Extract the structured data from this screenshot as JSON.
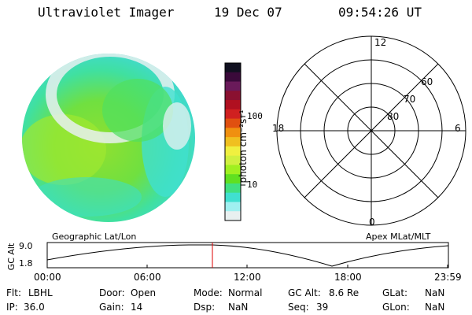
{
  "header": {
    "instrument": "Ultraviolet Imager",
    "date": "19 Dec 07",
    "time": "09:54:26 UT"
  },
  "colorbar": {
    "label": "photon cm⁻²s⁻¹",
    "ticks": [
      "100",
      "10"
    ],
    "colors": [
      "#101020",
      "#3a0a3a",
      "#6a1a5a",
      "#8a1030",
      "#b01020",
      "#d02020",
      "#e05010",
      "#f09010",
      "#f0c020",
      "#f0f040",
      "#d0f040",
      "#a0f020",
      "#60e020",
      "#40e080",
      "#40e0d0",
      "#a0f0f0",
      "#e8f0f0"
    ]
  },
  "polar": {
    "mlt_labels": {
      "top": "12",
      "bottom": "0",
      "left": "18",
      "right": "6"
    },
    "lat_labels": [
      "60",
      "70",
      "80"
    ]
  },
  "panel_labels": {
    "left": "Geographic Lat/Lon",
    "right": "Apex MLat/MLT"
  },
  "altitude_plot": {
    "ylabel": "GC Alt",
    "yticks": [
      "9.0",
      "1.8"
    ],
    "xticks": [
      "00:00",
      "06:00",
      "12:00",
      "18:00",
      "23:59"
    ],
    "marker_color": "#dd0000"
  },
  "status": {
    "row1": [
      {
        "label": "Flt:",
        "value": "LBHL"
      },
      {
        "label": "Door:",
        "value": "Open"
      },
      {
        "label": "Mode:",
        "value": "Normal"
      },
      {
        "label": "GC Alt:",
        "value": "8.6 Re"
      },
      {
        "label": "GLat:",
        "value": "NaN"
      }
    ],
    "row2": [
      {
        "label": "IP:",
        "value": "36.0"
      },
      {
        "label": "Gain:",
        "value": "14"
      },
      {
        "label": "Dsp:",
        "value": "NaN"
      },
      {
        "label": "Seq:",
        "value": "39"
      },
      {
        "label": "GLon:",
        "value": "NaN"
      }
    ]
  }
}
